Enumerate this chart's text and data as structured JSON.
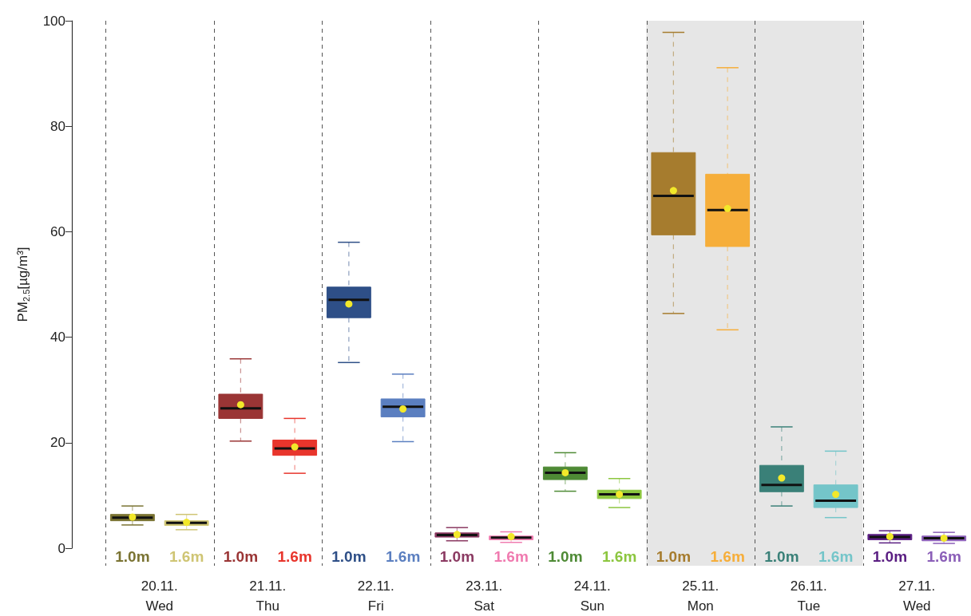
{
  "chart_data": {
    "type": "box",
    "ylabel": "PM$_{2.5}$[µg/m³]",
    "categories": [
      "20.11.\nWed",
      "21.11.\nThu",
      "22.11.\nFri",
      "23.11.\nSat",
      "24.11.\nSun",
      "25.11.\nMon",
      "26.11.\nTue",
      "27.11.\nWed"
    ],
    "ylim": [
      0,
      100
    ],
    "yticks": [
      0,
      20,
      40,
      60,
      80,
      100
    ],
    "grid": "x",
    "bands": [
      {
        "axis": "x",
        "from": "25.11.\nMon",
        "to": "26.11.\nTue",
        "color": "#e6e6e6"
      }
    ],
    "series": [
      {
        "name": "1.0m",
        "colors": [
          "#7a7332",
          "#9a3535",
          "#2e4f87",
          "#8b3a62",
          "#4e8a35",
          "#a67c2e",
          "#3a8078",
          "#5a1e82"
        ],
        "boxes": [
          {
            "low": 4.4,
            "q1": 5.2,
            "median": 5.8,
            "q3": 6.4,
            "high": 8.0,
            "mean": 5.9
          },
          {
            "low": 20.3,
            "q1": 24.6,
            "median": 26.5,
            "q3": 29.2,
            "high": 35.9,
            "mean": 27.2
          },
          {
            "low": 35.2,
            "q1": 43.7,
            "median": 47.1,
            "q3": 49.5,
            "high": 58.0,
            "mean": 46.3
          },
          {
            "low": 1.4,
            "q1": 2.1,
            "median": 2.5,
            "q3": 2.9,
            "high": 3.9,
            "mean": 2.6
          },
          {
            "low": 10.8,
            "q1": 13.0,
            "median": 14.3,
            "q3": 15.4,
            "high": 18.1,
            "mean": 14.3
          },
          {
            "low": 44.5,
            "q1": 59.4,
            "median": 66.8,
            "q3": 75.0,
            "high": 97.8,
            "mean": 67.8
          },
          {
            "low": 8.0,
            "q1": 10.7,
            "median": 12.0,
            "q3": 15.7,
            "high": 23.0,
            "mean": 13.3
          },
          {
            "low": 1.0,
            "q1": 1.6,
            "median": 2.1,
            "q3": 2.6,
            "high": 3.3,
            "mean": 2.2
          }
        ]
      },
      {
        "name": "1.6m",
        "colors": [
          "#cfc574",
          "#e8352c",
          "#5b7fc0",
          "#f07bb0",
          "#8cc63f",
          "#f6ae3a",
          "#74c5c9",
          "#8b5fb8"
        ],
        "boxes": [
          {
            "low": 3.5,
            "q1": 4.3,
            "median": 4.8,
            "q3": 5.2,
            "high": 6.4,
            "mean": 4.9
          },
          {
            "low": 14.2,
            "q1": 17.6,
            "median": 18.9,
            "q3": 20.5,
            "high": 24.6,
            "mean": 19.2
          },
          {
            "low": 20.2,
            "q1": 24.9,
            "median": 26.8,
            "q3": 28.3,
            "high": 33.0,
            "mean": 26.4
          },
          {
            "low": 1.1,
            "q1": 1.6,
            "median": 2.0,
            "q3": 2.3,
            "high": 3.1,
            "mean": 2.2
          },
          {
            "low": 7.7,
            "q1": 9.4,
            "median": 10.2,
            "q3": 11.0,
            "high": 13.2,
            "mean": 10.2
          },
          {
            "low": 41.4,
            "q1": 57.2,
            "median": 64.1,
            "q3": 70.9,
            "high": 91.1,
            "mean": 64.4
          },
          {
            "low": 5.8,
            "q1": 7.7,
            "median": 9.0,
            "q3": 12.0,
            "high": 18.4,
            "mean": 10.2
          },
          {
            "low": 0.9,
            "q1": 1.4,
            "median": 1.9,
            "q3": 2.3,
            "high": 3.0,
            "mean": 1.9
          }
        ]
      }
    ]
  }
}
